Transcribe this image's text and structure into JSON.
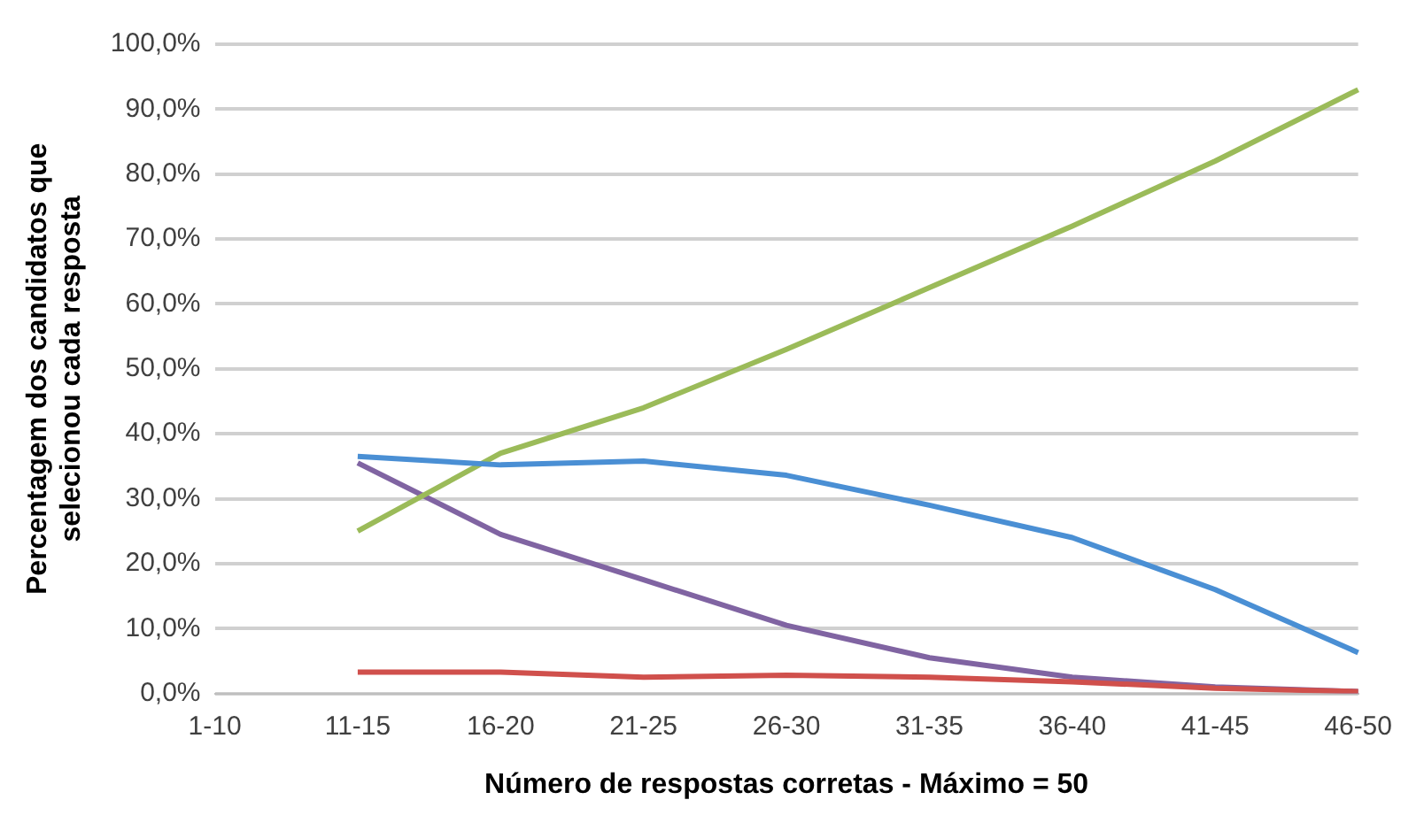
{
  "chart_data": {
    "type": "line",
    "xlabel": "Número de respostas corretas - Máximo = 50",
    "ylabel": "Percentagem dos candidatos que\nselecionou cada resposta",
    "categories": [
      "1-10",
      "11-15",
      "16-20",
      "21-25",
      "26-30",
      "31-35",
      "36-40",
      "41-45",
      "46-50"
    ],
    "series": [
      {
        "color": "#4a8fd4",
        "values": [
          null,
          36.5,
          35.2,
          35.8,
          33.6,
          29,
          24,
          16,
          6.3
        ]
      },
      {
        "color": "#d0504c",
        "values": [
          null,
          3.3,
          3.3,
          2.5,
          2.8,
          2.5,
          1.8,
          0.8,
          0.3
        ]
      },
      {
        "color": "#9bbb59",
        "values": [
          null,
          25,
          37,
          44,
          53,
          62.5,
          72,
          82,
          93
        ]
      },
      {
        "color": "#8064a2",
        "values": [
          null,
          35.5,
          24.5,
          17.5,
          10.5,
          5.5,
          2.5,
          1,
          0.3
        ]
      }
    ],
    "ylim": [
      0,
      100
    ],
    "yticks": [
      {
        "value": 0,
        "label": "0,0%"
      },
      {
        "value": 10,
        "label": "10,0%"
      },
      {
        "value": 20,
        "label": "20,0%"
      },
      {
        "value": 30,
        "label": "30,0%"
      },
      {
        "value": 40,
        "label": "40,0%"
      },
      {
        "value": 50,
        "label": "50,0%"
      },
      {
        "value": 60,
        "label": "60,0%"
      },
      {
        "value": 70,
        "label": "70,0%"
      },
      {
        "value": 80,
        "label": "80,0%"
      },
      {
        "value": 90,
        "label": "90,0%"
      },
      {
        "value": 100,
        "label": "100,0%"
      }
    ],
    "grid": "y",
    "legend": false,
    "marker": "none",
    "line_style": "solid"
  }
}
